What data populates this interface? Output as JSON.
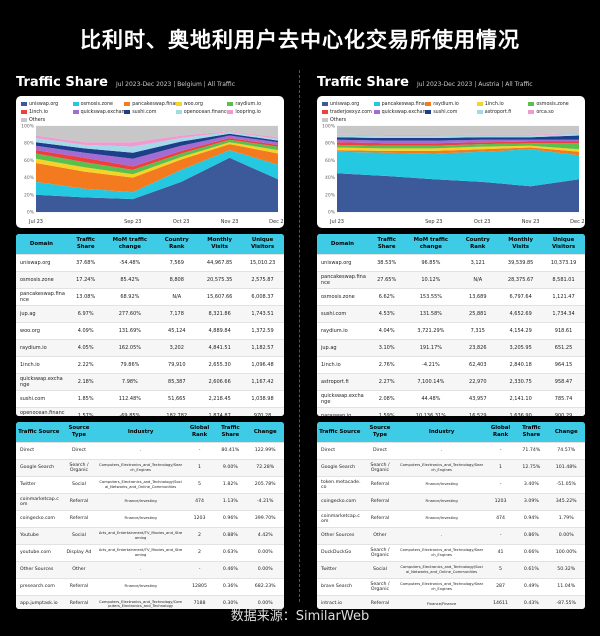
{
  "page": {
    "title": "比利时、奥地利用户去中心化交易所使用情况",
    "source": "数据来源：SimilarWeb"
  },
  "panels": [
    {
      "id": "belgium",
      "traffic_share_title": "Traffic Share",
      "subtitle": "Jul 2023-Dec 2023 | Belgium | All Traffic",
      "domain_table": {
        "headers": [
          "Domain",
          "Traffic Share",
          "MoM traffic change",
          "Country Rank",
          "Monthly Visits",
          "Unique Visitors"
        ],
        "rows": [
          [
            "uniswap.org",
            "37.68%",
            "-54.48%",
            "7,569",
            "44,967.85",
            "15,010.23"
          ],
          [
            "osmosis.zone",
            "17.24%",
            "85.42%",
            "8,808",
            "20,575.35",
            "2,575.87"
          ],
          [
            "pancakeswap.finance",
            "13.08%",
            "68.92%",
            "N/A",
            "15,607.66",
            "6,008.37"
          ],
          [
            "jup.ag",
            "6.97%",
            "277.60%",
            "7,178",
            "8,321.86",
            "1,743.51"
          ],
          [
            "woo.org",
            "4.09%",
            "131.69%",
            "45,124",
            "4,889.84",
            "1,372.59"
          ],
          [
            "raydium.io",
            "4.05%",
            "162.05%",
            "3,202",
            "4,841.51",
            "1,182.57"
          ],
          [
            "1inch.io",
            "2.22%",
            "79.86%",
            "79,910",
            "2,655.30",
            "1,096.48"
          ],
          [
            "quickswap.exchange",
            "2.18%",
            "7.98%",
            "85,387",
            "2,606.66",
            "1,167.42"
          ],
          [
            "sushi.com",
            "1.85%",
            "112.48%",
            "51,665",
            "2,218.45",
            "1,038.98"
          ],
          [
            "openocean.finance",
            "1.57%",
            "-69.85%",
            "182,782",
            "1,874.87",
            "970.28"
          ]
        ]
      },
      "source_table": {
        "headers": [
          "Traffic Source",
          "Source Type",
          "Industry",
          "Global Rank",
          "Traffic Share",
          "Change"
        ],
        "rows": [
          [
            "Direct",
            "Direct",
            "-",
            "-",
            "80.41%",
            "122.99%"
          ],
          [
            "Google Search",
            "Search / Organic",
            "Computers_Electronics_and_Technology/Search_Engines",
            "1",
            "9.00%",
            "72.28%"
          ],
          [
            "Twitter",
            "Social",
            "Computers_Electronics_and_Technology/Social_Networks_and_Online_Communities",
            "5",
            "1.82%",
            "205.78%"
          ],
          [
            "coinmarketcap.com",
            "Referral",
            "Finance/Investing",
            "474",
            "1.13%",
            "-4.21%"
          ],
          [
            "coingecko.com",
            "Referral",
            "Finance/Investing",
            "1203",
            "0.96%",
            "399.70%"
          ],
          [
            "Youtube",
            "Social",
            "Arts_and_Entertainment/TV_Movies_and_Streaming",
            "2",
            "0.88%",
            "4.42%"
          ],
          [
            "youtube.com",
            "Display Ad",
            "Arts_and_Entertainment/TV_Movies_and_Streaming",
            "2",
            "0.63%",
            "0.00%"
          ],
          [
            "Other Sources",
            "Other",
            "-",
            "-",
            "0.46%",
            "0.00%"
          ],
          [
            "presearch.com",
            "Referral",
            "Finance/Investing",
            "12805",
            "0.36%",
            "682.23%"
          ],
          [
            "app.jumptask.io",
            "Referral",
            "Computers_Electronics_and_Technology/Computers_Electronics_and_Technology",
            "7188",
            "0.30%",
            "0.00%"
          ]
        ]
      }
    },
    {
      "id": "austria",
      "traffic_share_title": "Traffic Share",
      "subtitle": "Jul 2023-Dec 2023 | Austria | All Traffic",
      "domain_table": {
        "headers": [
          "Domain",
          "Traffic Share",
          "MoM traffic change",
          "Country Rank",
          "Monthly Visits",
          "Unique Visitors"
        ],
        "rows": [
          [
            "uniswap.org",
            "38.53%",
            "96.85%",
            "3,121",
            "39,539.85",
            "10,373.19"
          ],
          [
            "pancakeswap.finance",
            "27.65%",
            "10.12%",
            "N/A",
            "28,375.67",
            "8,581.01"
          ],
          [
            "osmosis.zone",
            "6.62%",
            "153.55%",
            "13,689",
            "6,797.64",
            "1,121.47"
          ],
          [
            "sushi.com",
            "4.53%",
            "131.58%",
            "25,881",
            "4,652.69",
            "1,734.34"
          ],
          [
            "raydium.io",
            "4.04%",
            "3,721.29%",
            "7,315",
            "4,154.29",
            "918.61"
          ],
          [
            "jup.ag",
            "3.10%",
            "191.17%",
            "23,826",
            "3,205.95",
            "651.25"
          ],
          [
            "1inch.io",
            "2.76%",
            "-4.21%",
            "62,403",
            "2,840.18",
            "964.15"
          ],
          [
            "astroport.fi",
            "2.27%",
            "7,100.14%",
            "22,970",
            "2,330.75",
            "958.47"
          ],
          [
            "quickswap.exchange",
            "2.08%",
            "44.48%",
            "43,957",
            "2,141.10",
            "785.74"
          ],
          [
            "paraswap.io",
            "1.59%",
            "10,136.31%",
            "16,529",
            "1,636.90",
            "900.29"
          ]
        ]
      },
      "source_table": {
        "headers": [
          "Traffic Source",
          "Source Type",
          "Industry",
          "Global Rank",
          "Traffic Share",
          "Change"
        ],
        "rows": [
          [
            "Direct",
            "Direct",
            "-",
            "-",
            "71.74%",
            "74.57%"
          ],
          [
            "Google Search",
            "Search / Organic",
            "Computers_Electronics_and_Technology/Search_Engines",
            "1",
            "12.75%",
            "101.48%"
          ],
          [
            "token.metacade.co",
            "Referral",
            "Finance/Investing",
            "-",
            "3.40%",
            "-51.05%"
          ],
          [
            "coingecko.com",
            "Referral",
            "Finance/Investing",
            "1203",
            "3.09%",
            "345.22%"
          ],
          [
            "coinmarketcap.com",
            "Referral",
            "Finance/Investing",
            "474",
            "0.94%",
            "1.79%"
          ],
          [
            "Other Sources",
            "Other",
            "-",
            "-",
            "0.86%",
            "0.00%"
          ],
          [
            "DuckDuckGo",
            "Search / Organic",
            "Computers_Electronics_and_Technology/Search_Engines",
            "41",
            "0.66%",
            "100.00%"
          ],
          [
            "Twitter",
            "Social",
            "Computers_Electronics_and_Technology/Social_Networks_and_Online_Communities",
            "5",
            "0.61%",
            "50.32%"
          ],
          [
            "brave Search",
            "Search / Organic",
            "Computers_Electronics_and_Technology/Search_Engines",
            "287",
            "0.49%",
            "11.04%"
          ],
          [
            "intract.io",
            "Referral",
            "Finance/Finance",
            "14611",
            "0.43%",
            "-87.55%"
          ]
        ]
      }
    }
  ],
  "chart_data": [
    {
      "type": "area",
      "stacked": true,
      "normalized": true,
      "x": [
        "Jul 23",
        "Aug 23",
        "Sep 23",
        "Oct 23",
        "Nov 23",
        "Dec 23"
      ],
      "xticks": [
        "Jul 23",
        "Sep 23",
        "Oct 23",
        "Nov 23",
        "Dec 23"
      ],
      "yticks": [
        "0%",
        "20%",
        "40%",
        "60%",
        "80%",
        "100%"
      ],
      "ylim": [
        0,
        100
      ],
      "series": [
        {
          "name": "uniswap.org",
          "color": "#3c5a9a",
          "values": [
            20,
            17,
            15,
            35,
            63,
            38
          ]
        },
        {
          "name": "osmosis.zone",
          "color": "#24c8e0",
          "values": [
            15,
            10,
            8,
            14,
            9,
            17
          ]
        },
        {
          "name": "pancakeswap.finance",
          "color": "#f47a1f",
          "values": [
            22,
            20,
            17,
            12,
            7,
            13
          ]
        },
        {
          "name": "woo.org",
          "color": "#f5d327",
          "values": [
            5,
            5,
            4,
            3,
            2,
            4
          ]
        },
        {
          "name": "raydium.io",
          "color": "#5bbf4f",
          "values": [
            6,
            6,
            5,
            4,
            3,
            4
          ]
        },
        {
          "name": "1inch.io",
          "color": "#ee3e3e",
          "values": [
            4,
            5,
            4,
            3,
            2,
            2
          ]
        },
        {
          "name": "quickswap.exchange",
          "color": "#a46bd3",
          "values": [
            5,
            6,
            9,
            6,
            3,
            3
          ]
        },
        {
          "name": "sushi.com",
          "color": "#1d3f8a",
          "values": [
            4,
            5,
            7,
            5,
            2,
            2
          ]
        },
        {
          "name": "openocean.finance",
          "color": "#a3d9e8",
          "values": [
            5,
            4,
            7,
            4,
            2,
            2
          ]
        },
        {
          "name": "loopring.io",
          "color": "#f19ad0",
          "values": [
            3,
            3,
            5,
            3,
            1,
            2
          ]
        },
        {
          "name": "Others",
          "color": "#c7c7c7",
          "values": [
            11,
            19,
            19,
            11,
            6,
            13
          ]
        }
      ]
    },
    {
      "type": "area",
      "stacked": true,
      "normalized": true,
      "x": [
        "Jul 23",
        "Aug 23",
        "Sep 23",
        "Oct 23",
        "Nov 23",
        "Dec 23"
      ],
      "xticks": [
        "Jul 23",
        "Sep 23",
        "Oct 23",
        "Nov 23",
        "Dec 23"
      ],
      "yticks": [
        "0%",
        "20%",
        "40%",
        "60%",
        "80%",
        "100%"
      ],
      "ylim": [
        0,
        100
      ],
      "series": [
        {
          "name": "uniswap.org",
          "color": "#3c5a9a",
          "values": [
            45,
            42,
            38,
            35,
            30,
            38
          ]
        },
        {
          "name": "pancakeswap.finance",
          "color": "#24c8e0",
          "values": [
            25,
            27,
            30,
            35,
            43,
            28
          ]
        },
        {
          "name": "raydium.io",
          "color": "#f47a1f",
          "values": [
            2,
            2,
            3,
            3,
            2,
            4
          ]
        },
        {
          "name": "1inch.io",
          "color": "#f5d327",
          "values": [
            3,
            3,
            3,
            3,
            2,
            3
          ]
        },
        {
          "name": "osmosis.zone",
          "color": "#5bbf4f",
          "values": [
            3,
            3,
            3,
            3,
            3,
            7
          ]
        },
        {
          "name": "traderjoexyz.com",
          "color": "#ee3e3e",
          "values": [
            3,
            3,
            3,
            2,
            2,
            2
          ]
        },
        {
          "name": "quickswap.exchange",
          "color": "#a46bd3",
          "values": [
            3,
            3,
            3,
            3,
            2,
            2
          ]
        },
        {
          "name": "sushi.com",
          "color": "#1d3f8a",
          "values": [
            3,
            3,
            3,
            3,
            3,
            5
          ]
        },
        {
          "name": "astroport.fi",
          "color": "#a3d9e8",
          "values": [
            2,
            2,
            2,
            2,
            2,
            2
          ]
        },
        {
          "name": "orca.so",
          "color": "#f19ad0",
          "values": [
            1,
            1,
            1,
            1,
            1,
            1
          ]
        },
        {
          "name": "Others",
          "color": "#c7c7c7",
          "values": [
            10,
            11,
            11,
            10,
            10,
            8
          ]
        }
      ]
    }
  ]
}
